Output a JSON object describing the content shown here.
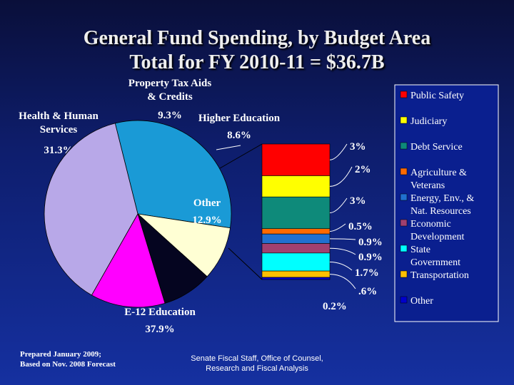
{
  "title": "General Fund Spending, by Budget Area",
  "subtitle": "Total for FY 2010-11 = $36.7B",
  "footer": {
    "prepared_line1": "Prepared January 2009;",
    "prepared_line2": "Based on Nov. 2008 Forecast",
    "source_line1": "Senate Fiscal Staff, Office of Counsel,",
    "source_line2": "Research and Fiscal Analysis"
  },
  "chart_data": [
    {
      "type": "pie",
      "slices": [
        {
          "label": [
            "Health & Human",
            "Services"
          ],
          "value": 31.3,
          "display": "31.3%",
          "color": "#1a9ad6"
        },
        {
          "label": [
            "Property Tax Aids",
            "& Credits"
          ],
          "value": 9.3,
          "display": "9.3%",
          "color": "#ffffd4"
        },
        {
          "label": [
            "Higher Education"
          ],
          "value": 8.6,
          "display": "8.6%",
          "color": "#050520"
        },
        {
          "label": [
            "Other"
          ],
          "value": 12.9,
          "display": "12.9%",
          "color": "#ff00ff"
        },
        {
          "label": [
            "E-12 Education"
          ],
          "value": 37.9,
          "display": "37.9%",
          "color": "#b8a8e8"
        }
      ]
    },
    {
      "type": "bar",
      "stacked": true,
      "segments": [
        {
          "name": [
            "Public Safety"
          ],
          "value": 3,
          "display": "3%",
          "color": "#ff0000"
        },
        {
          "name": [
            "Judiciary"
          ],
          "value": 2,
          "display": "2%",
          "color": "#ffff00"
        },
        {
          "name": [
            "Debt Service"
          ],
          "value": 3,
          "display": "3%",
          "color": "#0e8a7a"
        },
        {
          "name": [
            "Agriculture &",
            "Veterans"
          ],
          "value": 0.5,
          "display": "0.5%",
          "color": "#ff6a00"
        },
        {
          "name": [
            "Energy, Env., &",
            "Nat. Resources"
          ],
          "value": 0.9,
          "display": "0.9%",
          "color": "#2070d0"
        },
        {
          "name": [
            "Economic",
            "Development"
          ],
          "value": 0.9,
          "display": "0.9%",
          "color": "#a04070"
        },
        {
          "name": [
            "State",
            "Government"
          ],
          "value": 1.7,
          "display": "1.7%",
          "color": "#00ffff"
        },
        {
          "name": [
            "Transportation"
          ],
          "value": 0.6,
          "display": ".6%",
          "color": "#ffc000"
        },
        {
          "name": [
            "Other"
          ],
          "value": 0.2,
          "display": "0.2%",
          "color": "#0000cc"
        }
      ]
    }
  ]
}
